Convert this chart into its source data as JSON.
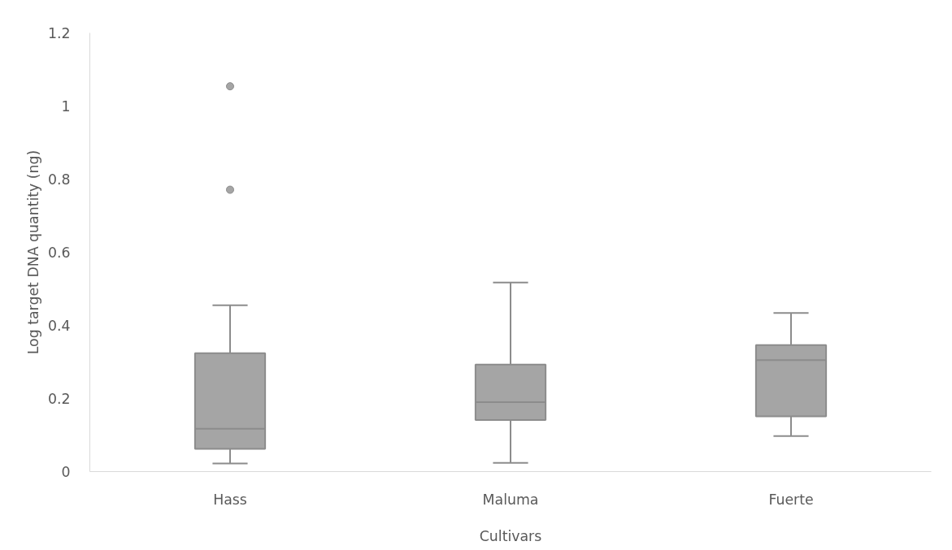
{
  "chart_data": {
    "type": "box",
    "xlabel": "Cultivars",
    "ylabel": "Log target DNA quantity (ng)",
    "categories": [
      "Hass",
      "Maluma",
      "Fuerte"
    ],
    "color": "#a5a5a5",
    "ylim": [
      0,
      1.2
    ],
    "yticks": [
      0,
      0.2,
      0.4,
      0.6,
      0.8,
      1,
      1.2
    ],
    "grid": false,
    "boxes": [
      {
        "low": 0.022,
        "q1": 0.062,
        "median": 0.117,
        "q3": 0.324,
        "high": 0.455,
        "outliers": [
          1.054,
          0.771
        ]
      },
      {
        "low": 0.024,
        "q1": 0.141,
        "median": 0.19,
        "q3": 0.293,
        "high": 0.517
      },
      {
        "low": 0.097,
        "q1": 0.151,
        "median": 0.305,
        "q3": 0.346,
        "high": 0.434
      }
    ]
  }
}
